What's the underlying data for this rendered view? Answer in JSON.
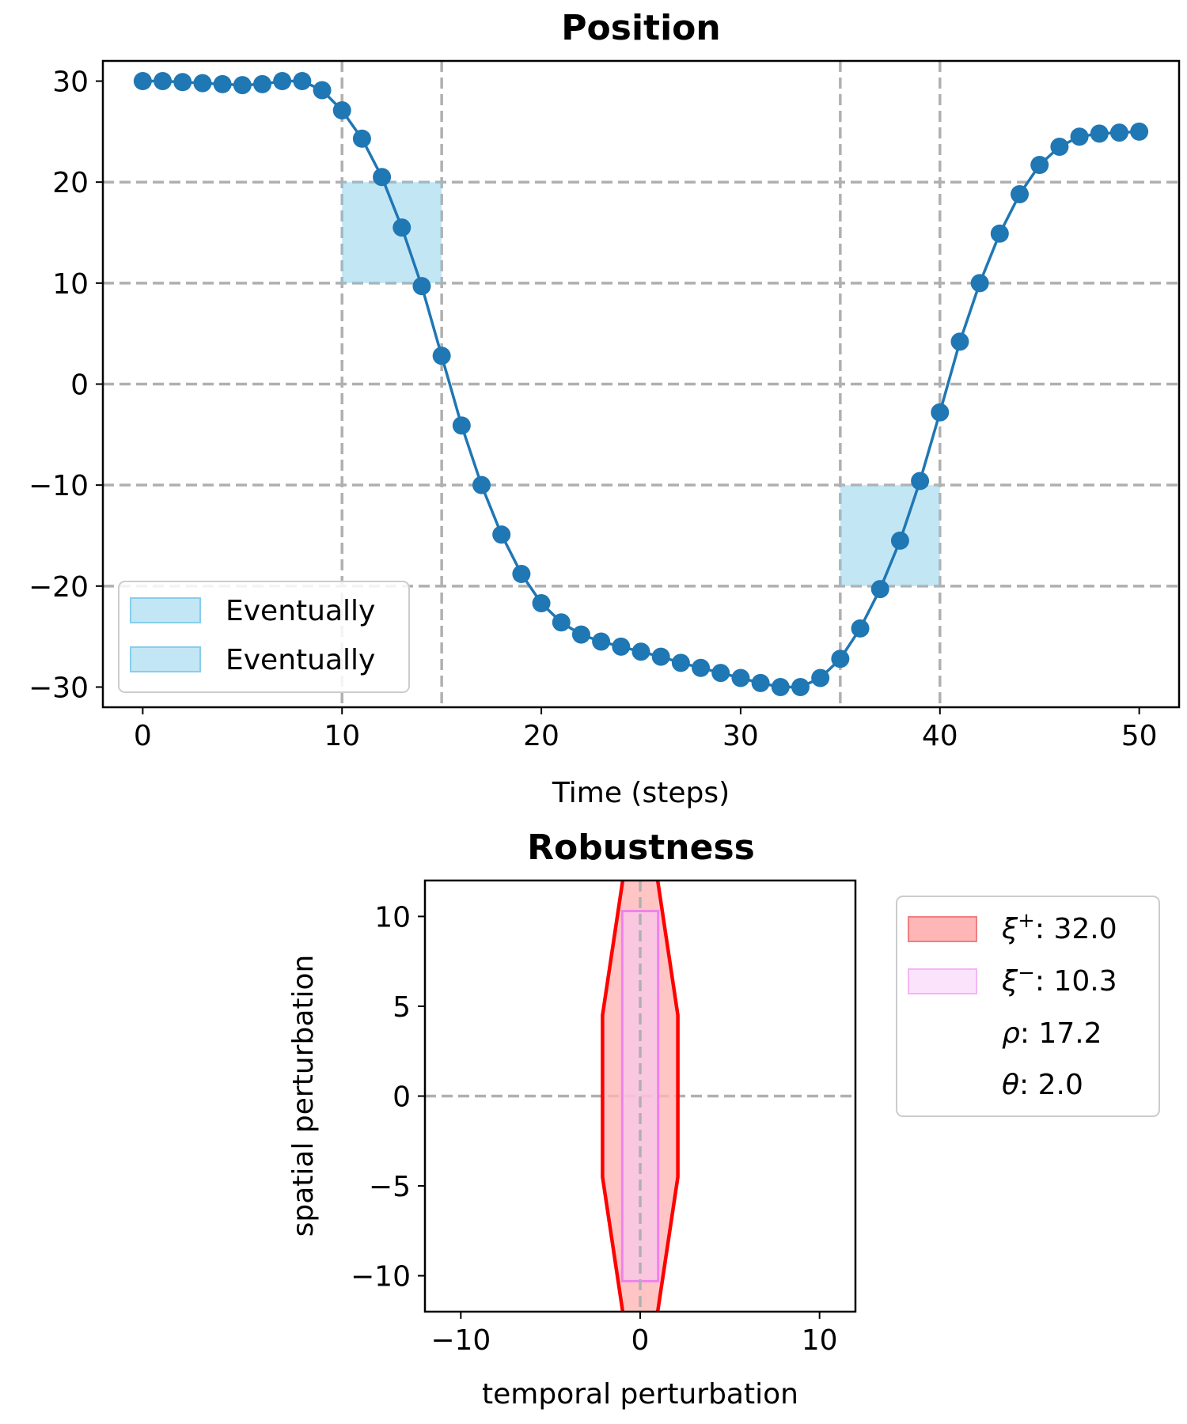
{
  "colors": {
    "line": "#1f77b4",
    "region": "#87ceeb",
    "grid": "#b0b0b0",
    "robust_outer": "#ff0000",
    "robust_outer_fill": "#ffb6b6",
    "robust_inner": "#ee82ee",
    "robust_inner_fill": "#f6c8f6"
  },
  "chart_data": [
    {
      "type": "line",
      "title": "Position",
      "xlabel": "Time (steps)",
      "ylabel": "",
      "xlim": [
        -2,
        52
      ],
      "ylim": [
        -32,
        32
      ],
      "xticks": [
        0,
        10,
        20,
        30,
        40,
        50
      ],
      "yticks": [
        -30,
        -20,
        -10,
        0,
        10,
        20,
        30
      ],
      "xtick_labels": [
        "0",
        "10",
        "20",
        "30",
        "40",
        "50"
      ],
      "ytick_labels": [
        "−30",
        "−20",
        "−10",
        "0",
        "10",
        "20",
        "30"
      ],
      "grid": "dashed, at x = 10, 15, 35, 40 and y = -20, -10, 0, 10, 20",
      "vgrid": [
        10,
        15,
        35,
        40
      ],
      "hgrid": [
        -20,
        -10,
        0,
        10,
        20
      ],
      "legend_position": "lower-left",
      "series": [
        {
          "x": [
            0,
            1,
            2,
            3,
            4,
            5,
            6,
            7,
            8,
            9,
            10,
            11,
            12,
            13,
            14,
            15,
            16,
            17,
            18,
            19,
            20,
            21,
            22,
            23,
            24,
            25,
            26,
            27,
            28,
            29,
            30,
            31,
            32,
            33,
            34,
            35,
            36,
            37,
            38,
            39,
            40,
            41,
            42,
            43,
            44,
            45,
            46,
            47,
            48,
            49,
            50
          ],
          "values": [
            30.0,
            30.0,
            29.9,
            29.8,
            29.7,
            29.6,
            29.7,
            30.0,
            30.0,
            29.1,
            27.1,
            24.3,
            20.5,
            15.5,
            9.7,
            2.8,
            -4.1,
            -10.0,
            -14.9,
            -18.8,
            -21.7,
            -23.6,
            -24.8,
            -25.5,
            -26.0,
            -26.5,
            -27.0,
            -27.6,
            -28.1,
            -28.6,
            -29.1,
            -29.6,
            -30.0,
            -30.0,
            -29.1,
            -27.2,
            -24.2,
            -20.3,
            -15.5,
            -9.6,
            -2.8,
            4.2,
            10.0,
            14.9,
            18.8,
            21.7,
            23.5,
            24.5,
            24.8,
            24.9,
            25.0
          ]
        }
      ],
      "regions": [
        {
          "name": "Eventually",
          "x": [
            10,
            15
          ],
          "y": [
            10,
            20
          ]
        },
        {
          "name": "Eventually",
          "x": [
            35,
            40
          ],
          "y": [
            -20,
            -10
          ]
        }
      ]
    },
    {
      "type": "area",
      "title": "Robustness",
      "xlabel": "temporal perturbation",
      "ylabel": "spatial perturbation",
      "xlim": [
        -12,
        12
      ],
      "ylim": [
        -12,
        12
      ],
      "xticks": [
        -10,
        0,
        10
      ],
      "yticks": [
        -10,
        -5,
        0,
        5,
        10
      ],
      "xtick_labels": [
        "−10",
        "0",
        "10"
      ],
      "ytick_labels": [
        "−10",
        "−5",
        "0",
        "5",
        "10"
      ],
      "grid": "dashed, at x = 0 and y = 0",
      "vgrid": [
        0
      ],
      "hgrid": [
        0
      ],
      "legend_position": "outside right, top",
      "outer_polygon": [
        [
          -0.9,
          12.5
        ],
        [
          -2.1,
          4.5
        ],
        [
          -2.1,
          -4.5
        ],
        [
          -0.9,
          -12.5
        ],
        [
          0.9,
          -12.5
        ],
        [
          2.1,
          -4.5
        ],
        [
          2.1,
          4.5
        ],
        [
          0.9,
          12.5
        ]
      ],
      "inner_rect": {
        "x": [
          -1.0,
          1.0
        ],
        "y": [
          -10.3,
          10.3
        ]
      },
      "legend": {
        "xi_plus": {
          "symbol": "ξ",
          "sup": "+",
          "value": ": 32.0"
        },
        "xi_minus": {
          "symbol": "ξ",
          "sup": "−",
          "value": ": 10.3"
        },
        "rho": {
          "symbol": "ρ",
          "value": ": 17.2"
        },
        "theta": {
          "symbol": "θ",
          "value": ": 2.0"
        }
      }
    }
  ]
}
